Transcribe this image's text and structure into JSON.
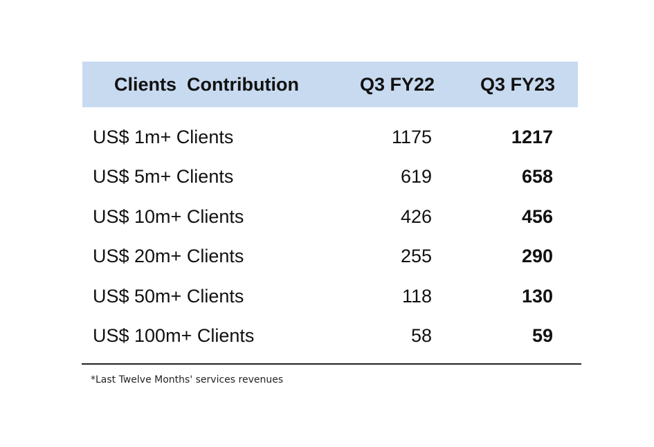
{
  "header": {
    "label": "Clients  Contribution",
    "col1": "Q3 FY22",
    "col2": "Q3 FY23"
  },
  "rows": [
    {
      "label": "US$ 1m+ Clients",
      "q3_fy22": "1175",
      "q3_fy23": "1217"
    },
    {
      "label": "US$ 5m+ Clients",
      "q3_fy22": "619",
      "q3_fy23": "658"
    },
    {
      "label": "US$ 10m+ Clients",
      "q3_fy22": "426",
      "q3_fy23": "456"
    },
    {
      "label": "US$ 20m+ Clients",
      "q3_fy22": "255",
      "q3_fy23": "290"
    },
    {
      "label": "US$ 50m+ Clients",
      "q3_fy22": "118",
      "q3_fy23": "130"
    },
    {
      "label": "US$ 100m+ Clients",
      "q3_fy22": "58",
      "q3_fy23": "59"
    }
  ],
  "footnote": "*Last Twelve Months' services revenues",
  "colors": {
    "header_bg": "#c8daf0",
    "text": "#111111"
  }
}
